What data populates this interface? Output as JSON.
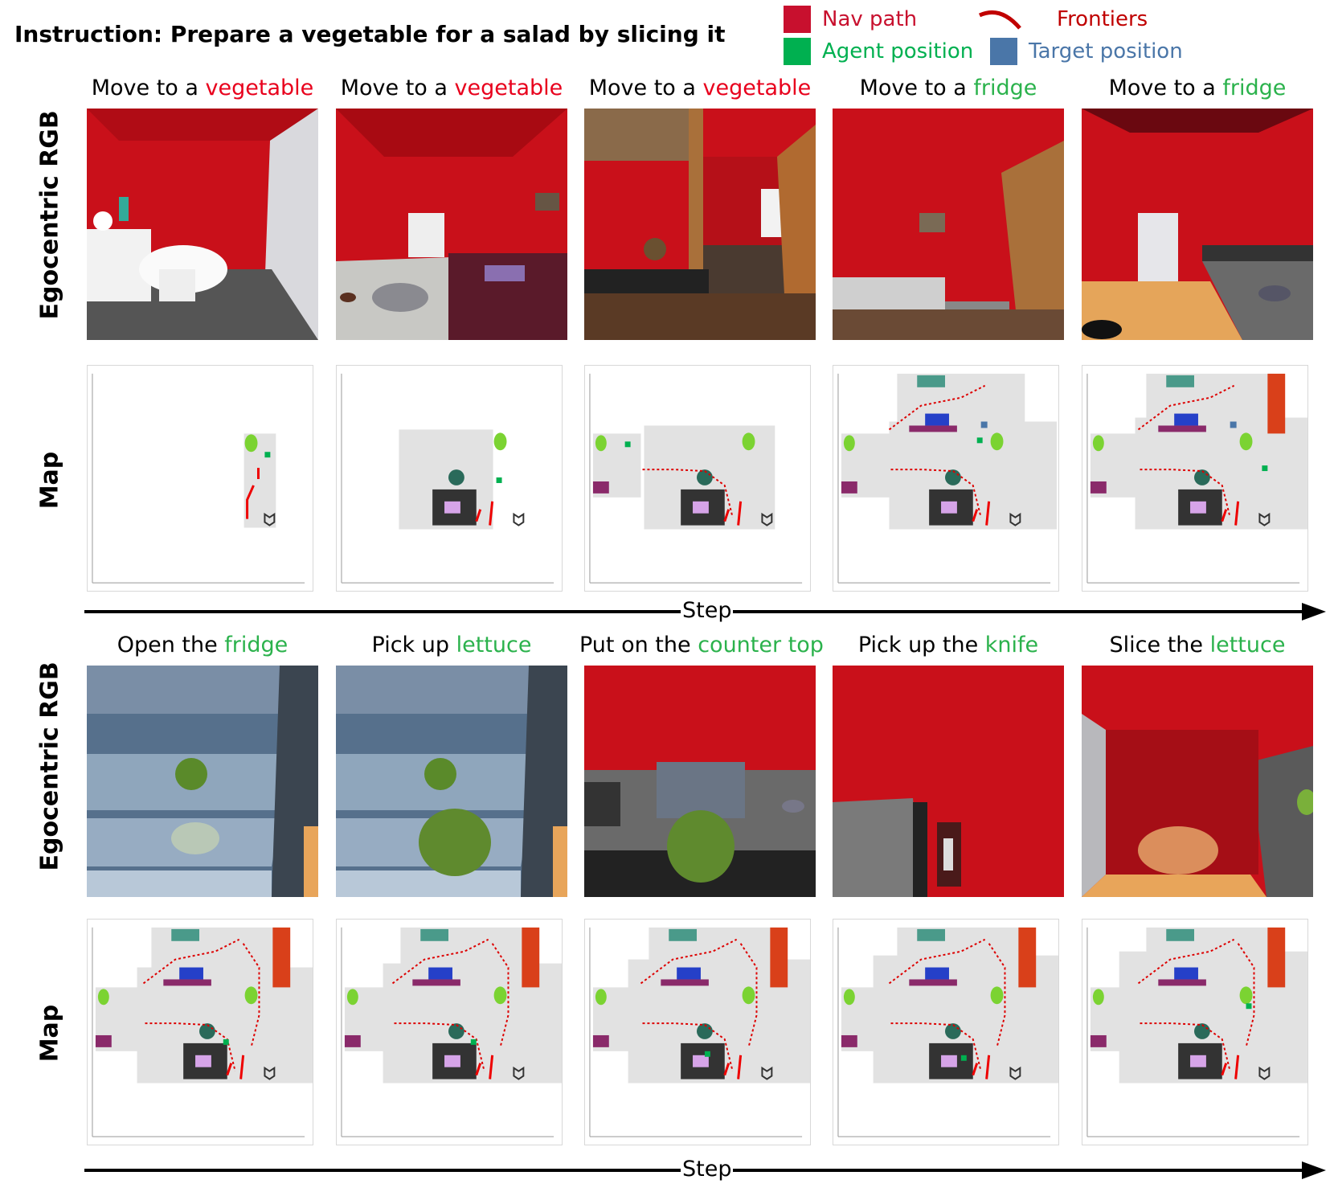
{
  "instruction": "Instruction: Prepare a vegetable for a salad by slicing it",
  "legend": {
    "nav_path": {
      "label": "Nav path",
      "color": "#c8102e"
    },
    "agent_position": {
      "label": "Agent position",
      "color": "#00b050"
    },
    "frontiers": {
      "label": "Frontiers",
      "color": "#c00000"
    },
    "target_position": {
      "label": "Target position",
      "color": "#4a76a8"
    }
  },
  "row_labels": {
    "rgb": "Egocentric RGB",
    "map": "Map"
  },
  "step_label": "Step",
  "colors": {
    "red_text": "#e8001c",
    "green_text": "#2bb24c"
  },
  "rows": [
    {
      "steps": [
        {
          "prefix": "Move to a ",
          "object": "vegetable",
          "tone": "red",
          "scene": "bathroom"
        },
        {
          "prefix": "Move to a ",
          "object": "vegetable",
          "tone": "red",
          "scene": "bedroom"
        },
        {
          "prefix": "Move to a ",
          "object": "vegetable",
          "tone": "red",
          "scene": "hallway"
        },
        {
          "prefix": "Move to a ",
          "object": "fridge",
          "tone": "green",
          "scene": "livingroom"
        },
        {
          "prefix": "Move to a ",
          "object": "fridge",
          "tone": "green",
          "scene": "kitchen"
        }
      ]
    },
    {
      "steps": [
        {
          "prefix": "Open the ",
          "object": "fridge",
          "tone": "green",
          "scene": "fridge-open"
        },
        {
          "prefix": "Pick up ",
          "object": "lettuce",
          "tone": "green",
          "scene": "fridge-lettuce"
        },
        {
          "prefix": "Put on the ",
          "object": "counter top",
          "tone": "green",
          "scene": "counter"
        },
        {
          "prefix": "Pick up the ",
          "object": "knife",
          "tone": "green",
          "scene": "knife"
        },
        {
          "prefix": "Slice the ",
          "object": "lettuce",
          "tone": "green",
          "scene": "slice"
        }
      ]
    }
  ]
}
